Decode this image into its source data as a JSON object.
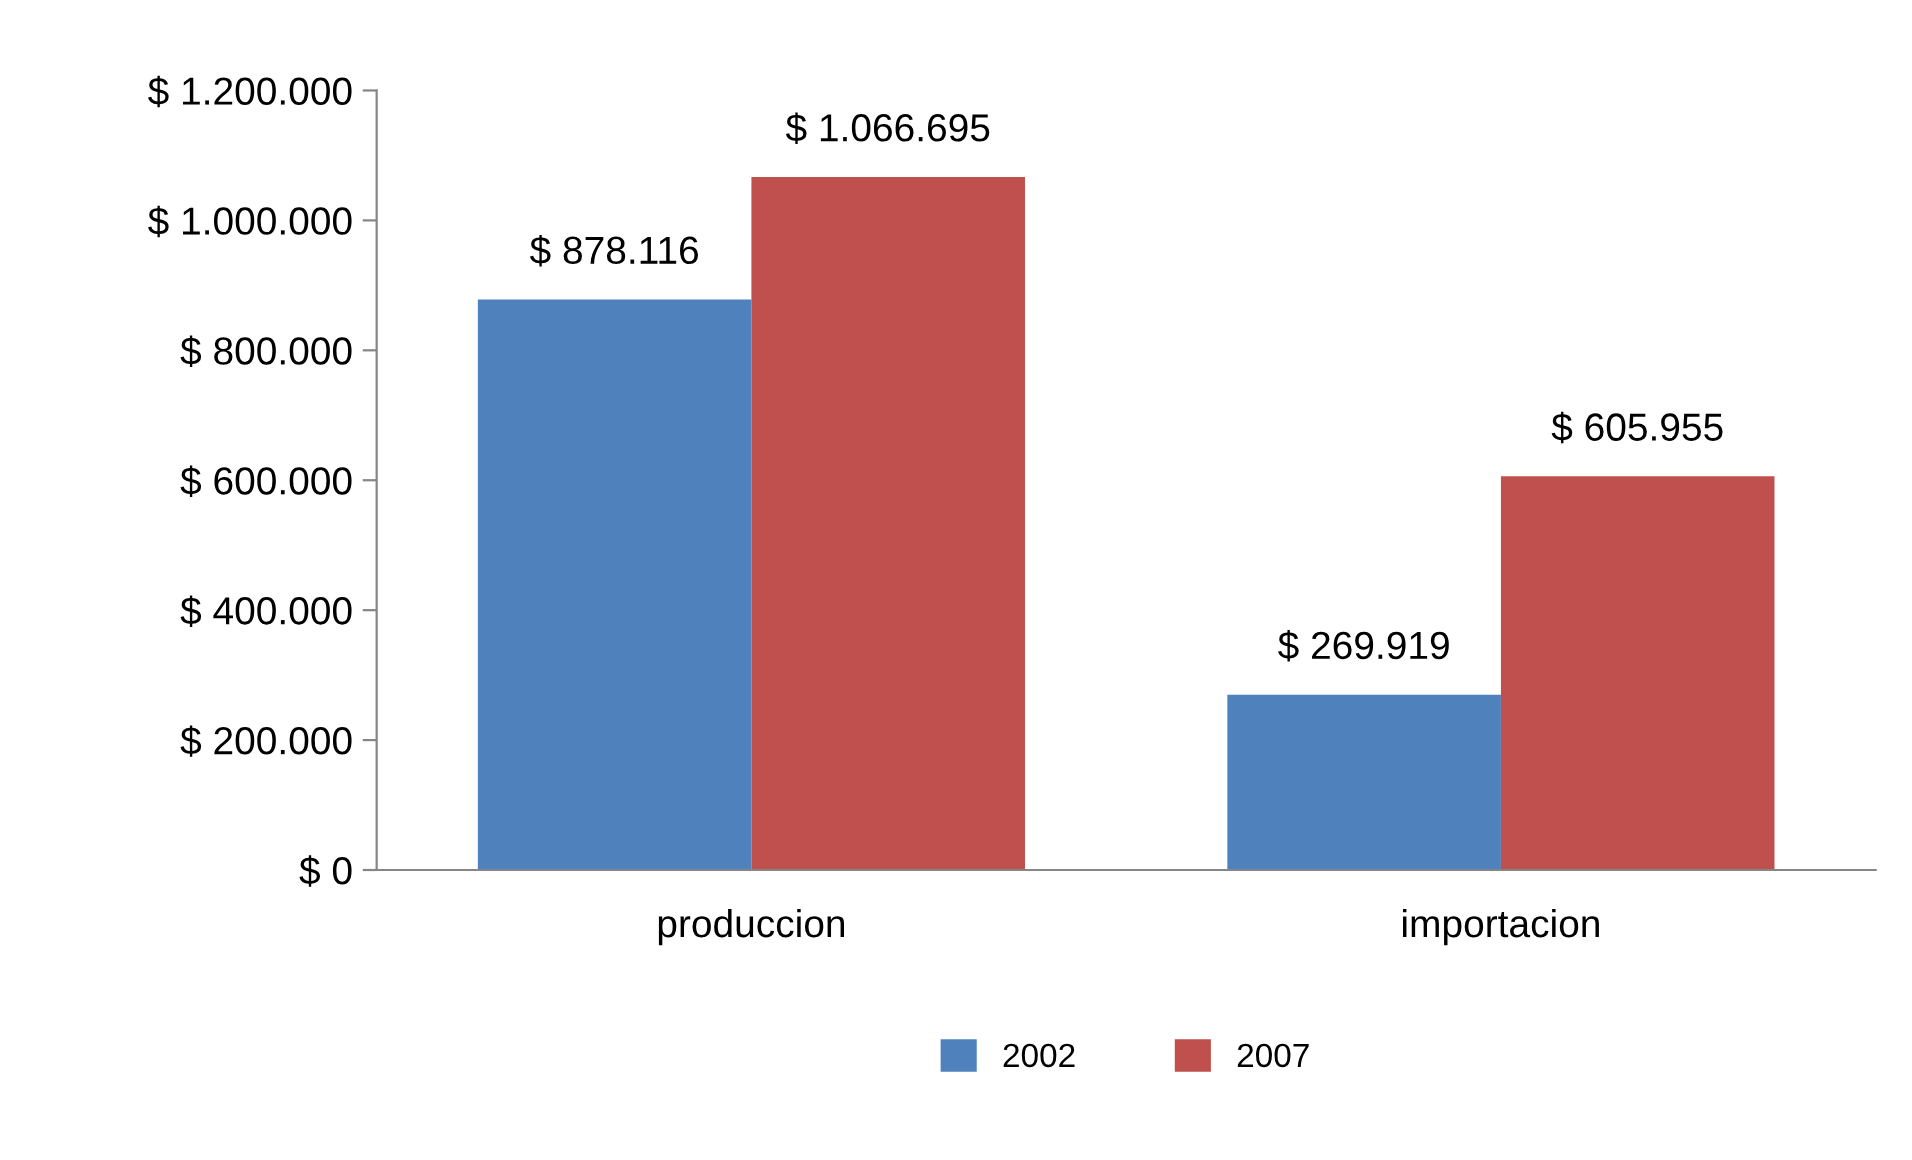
{
  "chart_data": {
    "type": "bar",
    "categories": [
      "produccion",
      "importacion"
    ],
    "series": [
      {
        "name": "2002",
        "color": "#4f81bd",
        "values": [
          878116,
          269919
        ],
        "value_labels": [
          "$ 878.116",
          "$ 269.919"
        ]
      },
      {
        "name": "2007",
        "color": "#c0504d",
        "values": [
          1066695,
          605955
        ],
        "value_labels": [
          "$ 1.066.695",
          "$ 605.955"
        ]
      }
    ],
    "ylim": [
      0,
      1200000
    ],
    "yticks": [
      {
        "value": 0,
        "label": "$ 0"
      },
      {
        "value": 200000,
        "label": "$ 200.000"
      },
      {
        "value": 400000,
        "label": "$ 400.000"
      },
      {
        "value": 600000,
        "label": "$ 600.000"
      },
      {
        "value": 800000,
        "label": "$ 800.000"
      },
      {
        "value": 1000000,
        "label": "$ 1.000.000"
      },
      {
        "value": 1200000,
        "label": "$ 1.200.000"
      }
    ],
    "grid": false,
    "legend": "bottom"
  }
}
